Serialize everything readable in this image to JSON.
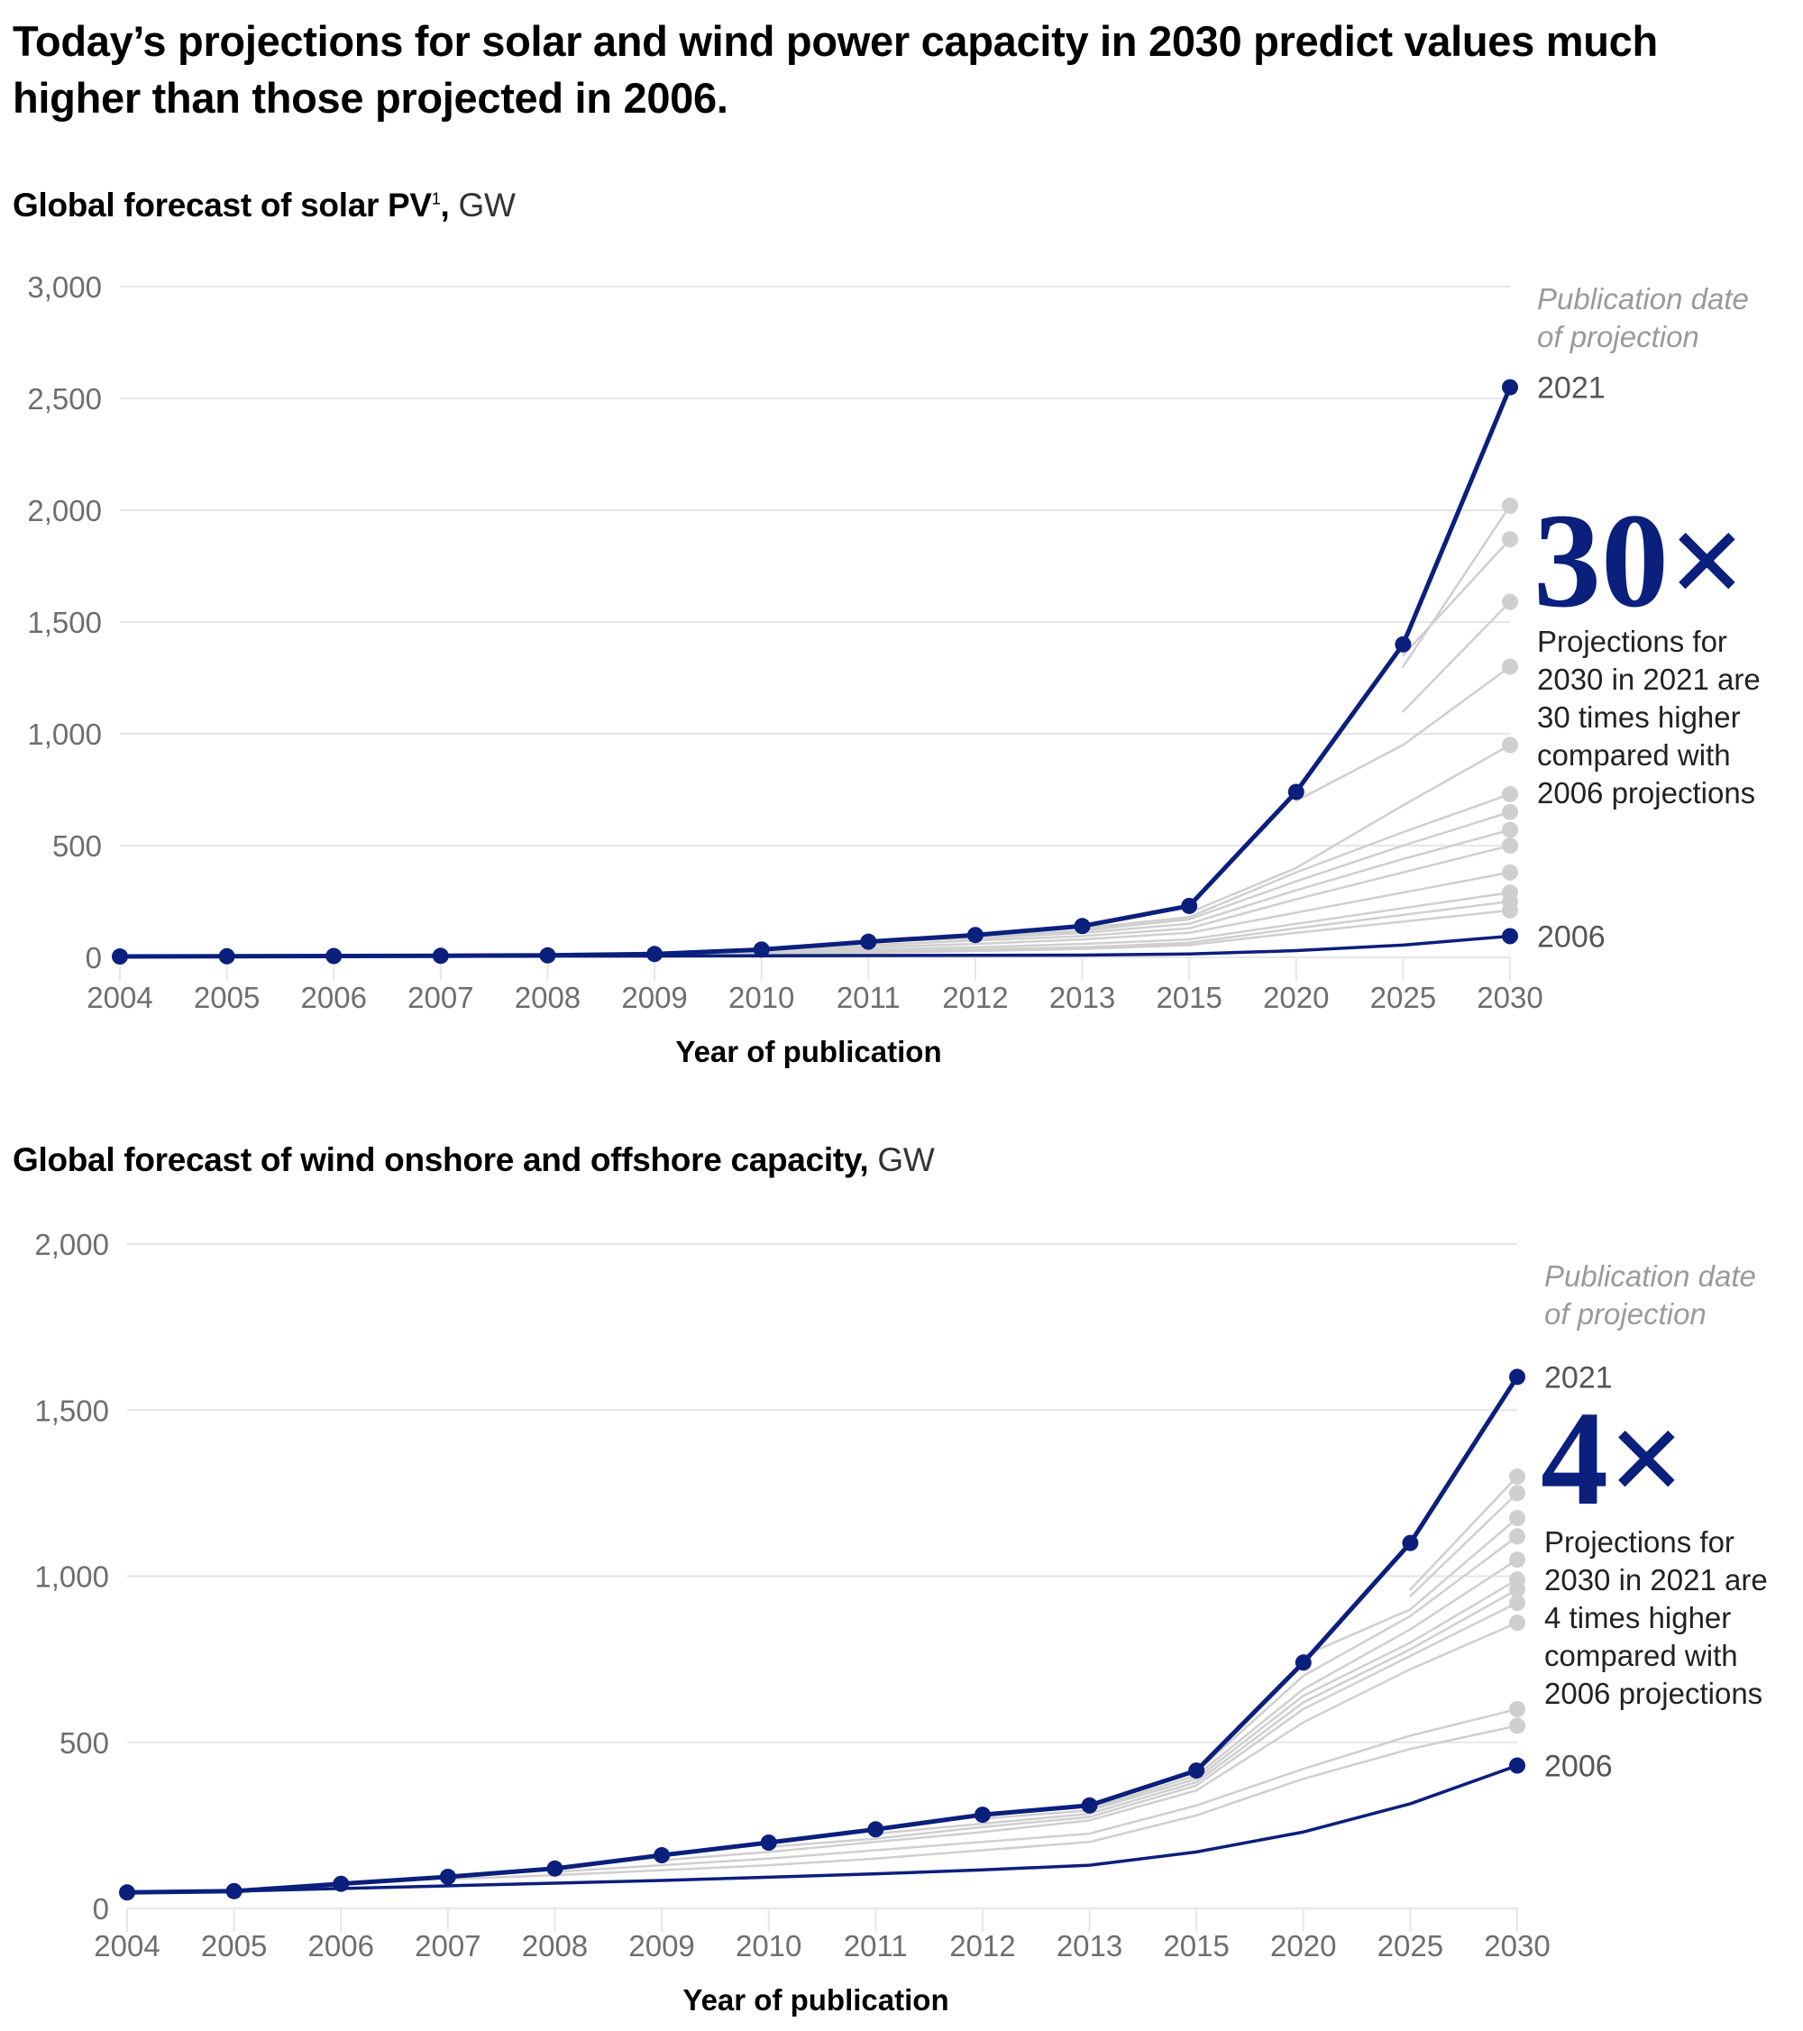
{
  "headline": "Today’s projections for solar and wind power capacity in 2030 predict values much higher than those projected in 2006.",
  "colors": {
    "highlight": "#0b1f7c",
    "context": "#cfcfcf",
    "grid": "#e6e6e6",
    "tick": "#6e6e6e"
  },
  "chart_data": [
    {
      "id": "solar",
      "type": "line",
      "title": "Global forecast of solar PV",
      "title_footnote": "1",
      "title_unit": ", GW",
      "xlabel": "Year of publication",
      "ylabel": "GW",
      "categories": [
        "2004",
        "2005",
        "2006",
        "2007",
        "2008",
        "2009",
        "2010",
        "2011",
        "2012",
        "2013",
        "2015",
        "2020",
        "2025",
        "2030"
      ],
      "ylim": [
        0,
        3000
      ],
      "yticks": [
        0,
        500,
        1000,
        1500,
        2000,
        2500,
        3000
      ],
      "ytick_labels": [
        "0",
        "500",
        "1,000",
        "1,500",
        "2,000",
        "2,500",
        "3,000"
      ],
      "grid": true,
      "legend_caption": [
        "Publication date",
        "of projection"
      ],
      "annotation": {
        "multiplier": "30×",
        "note": [
          "Projections for",
          "2030 in 2021 are",
          "30 times higher",
          "compared with",
          "2006 projections"
        ]
      },
      "series": [
        {
          "name": "2021",
          "highlight": true,
          "markers": true,
          "values": [
            4,
            5,
            6,
            7,
            9,
            15,
            35,
            70,
            100,
            140,
            230,
            740,
            1400,
            2550
          ]
        },
        {
          "name": "2006",
          "highlight": true,
          "markers": false,
          "values": [
            4,
            4,
            5,
            5,
            6,
            6,
            7,
            8,
            9,
            10,
            15,
            30,
            55,
            95
          ]
        },
        {
          "name": "projection-a",
          "highlight": false,
          "values": [
            null,
            null,
            null,
            null,
            null,
            null,
            null,
            null,
            null,
            null,
            null,
            null,
            1300,
            2020
          ]
        },
        {
          "name": "projection-b",
          "highlight": false,
          "values": [
            null,
            null,
            null,
            null,
            null,
            null,
            null,
            null,
            null,
            null,
            null,
            null,
            1350,
            1870
          ]
        },
        {
          "name": "projection-c",
          "highlight": false,
          "values": [
            null,
            null,
            null,
            null,
            null,
            null,
            null,
            null,
            null,
            null,
            null,
            null,
            1100,
            1590
          ]
        },
        {
          "name": "projection-d",
          "highlight": false,
          "values": [
            null,
            null,
            null,
            null,
            null,
            null,
            null,
            null,
            null,
            null,
            null,
            700,
            950,
            1300
          ]
        },
        {
          "name": "projection-e",
          "highlight": false,
          "values": [
            null,
            null,
            null,
            null,
            null,
            null,
            null,
            null,
            null,
            null,
            200,
            400,
            680,
            950
          ]
        },
        {
          "name": "projection-f",
          "highlight": false,
          "values": [
            null,
            null,
            null,
            null,
            null,
            null,
            null,
            null,
            null,
            130,
            180,
            380,
            560,
            730
          ]
        },
        {
          "name": "projection-g",
          "highlight": false,
          "values": [
            null,
            null,
            null,
            null,
            null,
            null,
            null,
            null,
            90,
            120,
            170,
            340,
            500,
            650
          ]
        },
        {
          "name": "projection-h",
          "highlight": false,
          "values": [
            null,
            null,
            null,
            null,
            null,
            null,
            null,
            70,
            85,
            110,
            150,
            300,
            440,
            570
          ]
        },
        {
          "name": "projection-i",
          "highlight": false,
          "values": [
            null,
            null,
            null,
            null,
            null,
            null,
            30,
            55,
            75,
            95,
            130,
            260,
            380,
            500
          ]
        },
        {
          "name": "projection-j",
          "highlight": false,
          "values": [
            null,
            null,
            null,
            null,
            null,
            13,
            25,
            45,
            60,
            80,
            110,
            200,
            290,
            380
          ]
        },
        {
          "name": "projection-k",
          "highlight": false,
          "values": [
            null,
            null,
            null,
            null,
            8,
            11,
            20,
            35,
            45,
            60,
            80,
            150,
            220,
            290
          ]
        },
        {
          "name": "projection-l",
          "highlight": false,
          "values": [
            null,
            null,
            null,
            6,
            7,
            9,
            15,
            25,
            35,
            45,
            65,
            130,
            190,
            250
          ]
        },
        {
          "name": "projection-m",
          "highlight": false,
          "values": [
            null,
            null,
            5,
            6,
            7,
            8,
            12,
            20,
            28,
            38,
            55,
            110,
            160,
            210
          ]
        }
      ],
      "end_labels": {
        "top": "2021",
        "bottom": "2006"
      }
    },
    {
      "id": "wind",
      "type": "line",
      "title": "Global forecast of wind onshore and offshore capacity",
      "title_footnote": "",
      "title_unit": ", GW",
      "xlabel": "Year of publication",
      "ylabel": "GW",
      "categories": [
        "2004",
        "2005",
        "2006",
        "2007",
        "2008",
        "2009",
        "2010",
        "2011",
        "2012",
        "2013",
        "2015",
        "2020",
        "2025",
        "2030"
      ],
      "ylim": [
        0,
        2000
      ],
      "yticks": [
        0,
        500,
        1000,
        1500,
        2000
      ],
      "ytick_labels": [
        "0",
        "500",
        "1,000",
        "1,500",
        "2,000"
      ],
      "grid": true,
      "legend_caption": [
        "Publication date",
        "of projection"
      ],
      "annotation": {
        "multiplier": "4×",
        "note": [
          "Projections for",
          "2030 in 2021 are",
          "4 times higher",
          "compared with",
          "2006 projections"
        ]
      },
      "series": [
        {
          "name": "2021",
          "highlight": true,
          "markers": true,
          "values": [
            48,
            52,
            74,
            95,
            120,
            160,
            198,
            238,
            282,
            310,
            415,
            740,
            1100,
            1600
          ]
        },
        {
          "name": "2006",
          "highlight": true,
          "markers": false,
          "values": [
            48,
            52,
            60,
            68,
            76,
            84,
            94,
            104,
            116,
            130,
            170,
            230,
            315,
            430
          ]
        },
        {
          "name": "projection-a",
          "highlight": false,
          "values": [
            null,
            null,
            null,
            null,
            null,
            null,
            null,
            null,
            null,
            null,
            null,
            null,
            960,
            1300
          ]
        },
        {
          "name": "projection-b",
          "highlight": false,
          "values": [
            null,
            null,
            null,
            null,
            null,
            null,
            null,
            null,
            null,
            null,
            null,
            null,
            940,
            1250
          ]
        },
        {
          "name": "projection-c",
          "highlight": false,
          "values": [
            null,
            null,
            null,
            null,
            null,
            null,
            null,
            null,
            null,
            null,
            null,
            760,
            900,
            1175
          ]
        },
        {
          "name": "projection-d",
          "highlight": false,
          "values": [
            null,
            null,
            null,
            null,
            null,
            null,
            null,
            null,
            null,
            null,
            410,
            700,
            880,
            1120
          ]
        },
        {
          "name": "projection-e",
          "highlight": false,
          "values": [
            null,
            null,
            null,
            null,
            null,
            null,
            null,
            null,
            null,
            300,
            400,
            660,
            840,
            1050
          ]
        },
        {
          "name": "projection-f",
          "highlight": false,
          "values": [
            null,
            null,
            null,
            null,
            null,
            null,
            null,
            null,
            270,
            295,
            390,
            640,
            800,
            990
          ]
        },
        {
          "name": "projection-g",
          "highlight": false,
          "values": [
            null,
            null,
            null,
            null,
            null,
            null,
            null,
            225,
            255,
            285,
            380,
            620,
            780,
            960
          ]
        },
        {
          "name": "projection-h",
          "highlight": false,
          "values": [
            null,
            null,
            null,
            null,
            null,
            null,
            185,
            210,
            245,
            275,
            370,
            600,
            760,
            920
          ]
        },
        {
          "name": "projection-i",
          "highlight": false,
          "values": [
            null,
            null,
            null,
            null,
            null,
            145,
            170,
            200,
            230,
            265,
            355,
            560,
            720,
            860
          ]
        },
        {
          "name": "projection-j",
          "highlight": false,
          "values": [
            null,
            null,
            null,
            null,
            110,
            130,
            150,
            175,
            200,
            225,
            310,
            420,
            520,
            600
          ]
        },
        {
          "name": "projection-k",
          "highlight": false,
          "values": [
            null,
            null,
            null,
            88,
            100,
            115,
            130,
            150,
            175,
            200,
            280,
            390,
            480,
            550
          ]
        }
      ],
      "end_labels": {
        "top": "2021",
        "bottom": "2006"
      }
    }
  ]
}
